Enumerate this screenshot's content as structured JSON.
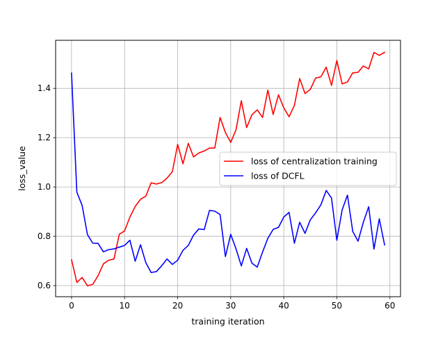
{
  "chart_data": {
    "type": "line",
    "xlabel": "training iteration",
    "ylabel": "loss_value",
    "xlim": [
      -3,
      62
    ],
    "ylim": [
      0.555,
      1.595
    ],
    "xticks": [
      0,
      10,
      20,
      30,
      40,
      50,
      60
    ],
    "yticks": [
      0.6,
      0.8,
      1.0,
      1.2,
      1.4
    ],
    "xtick_labels": [
      "0",
      "10",
      "20",
      "30",
      "40",
      "50",
      "60"
    ],
    "ytick_labels": [
      "0.6",
      "0.8",
      "1.0",
      "1.2",
      "1.4"
    ],
    "grid": true,
    "legend_position": "center-right",
    "x": [
      0,
      1,
      2,
      3,
      4,
      5,
      6,
      7,
      8,
      9,
      10,
      11,
      12,
      13,
      14,
      15,
      16,
      17,
      18,
      19,
      20,
      21,
      22,
      23,
      24,
      25,
      26,
      27,
      28,
      29,
      30,
      31,
      32,
      33,
      34,
      35,
      36,
      37,
      38,
      39,
      40,
      41,
      42,
      43,
      44,
      45,
      46,
      47,
      48,
      49,
      50,
      51,
      52,
      53,
      54,
      55,
      56,
      57,
      58,
      59
    ],
    "series": [
      {
        "name": "loss of centralization training",
        "color": "#ff0000",
        "values": [
          0.705,
          0.613,
          0.633,
          0.599,
          0.605,
          0.64,
          0.688,
          0.703,
          0.708,
          0.808,
          0.822,
          0.878,
          0.921,
          0.95,
          0.963,
          1.017,
          1.012,
          1.018,
          1.036,
          1.062,
          1.173,
          1.094,
          1.177,
          1.122,
          1.138,
          1.146,
          1.158,
          1.158,
          1.282,
          1.221,
          1.181,
          1.232,
          1.35,
          1.241,
          1.293,
          1.313,
          1.282,
          1.393,
          1.294,
          1.374,
          1.321,
          1.285,
          1.331,
          1.44,
          1.379,
          1.396,
          1.442,
          1.447,
          1.486,
          1.412,
          1.513,
          1.418,
          1.426,
          1.463,
          1.465,
          1.491,
          1.479,
          1.546,
          1.534,
          1.546
        ]
      },
      {
        "name": "loss of DCFL",
        "color": "#0000ff",
        "values": [
          1.462,
          0.979,
          0.925,
          0.807,
          0.772,
          0.771,
          0.737,
          0.746,
          0.749,
          0.756,
          0.763,
          0.784,
          0.699,
          0.766,
          0.693,
          0.653,
          0.657,
          0.681,
          0.708,
          0.686,
          0.703,
          0.743,
          0.763,
          0.805,
          0.83,
          0.827,
          0.905,
          0.902,
          0.888,
          0.718,
          0.808,
          0.749,
          0.68,
          0.751,
          0.691,
          0.675,
          0.736,
          0.792,
          0.828,
          0.836,
          0.878,
          0.897,
          0.772,
          0.857,
          0.812,
          0.867,
          0.895,
          0.928,
          0.986,
          0.955,
          0.784,
          0.907,
          0.967,
          0.82,
          0.78,
          0.857,
          0.92,
          0.748,
          0.871,
          0.765
        ]
      }
    ]
  }
}
